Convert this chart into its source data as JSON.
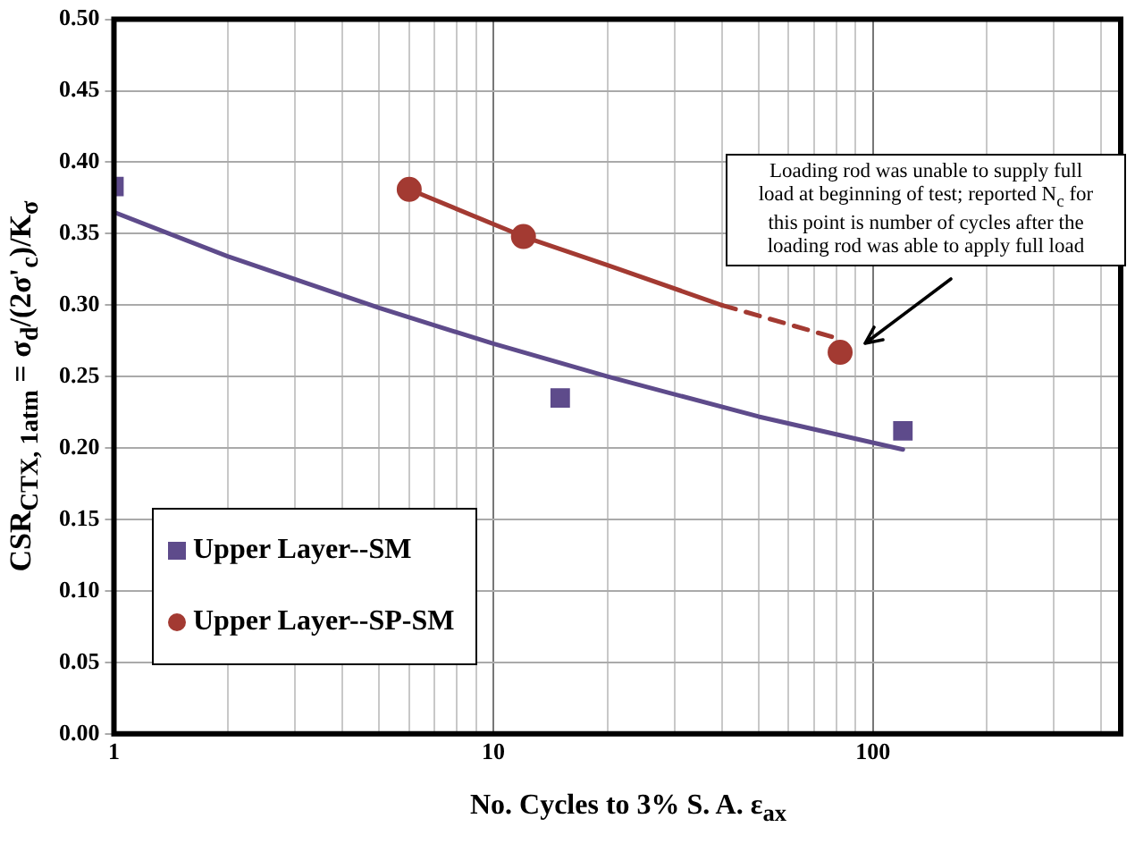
{
  "chart_data": {
    "type": "scatter",
    "xlabel": "No. Cycles to 3% S. A. ε$_{ax}$",
    "ylabel": "CSR$_{CTX, 1atm}$ = σ$_{d}$/(2σ'$_{c}$)/K$_{σ}$",
    "log": "x",
    "xlim": [
      1,
      450
    ],
    "xticks": [
      1,
      {
        "value": 2,
        "label": null
      },
      {
        "value": 3,
        "label": null
      },
      {
        "value": 4,
        "label": null
      },
      {
        "value": 5,
        "label": null
      },
      {
        "value": 6,
        "label": null
      },
      {
        "value": 7,
        "label": null
      },
      {
        "value": 8,
        "label": null
      },
      {
        "value": 9,
        "label": null
      },
      10,
      {
        "value": 20,
        "label": null
      },
      {
        "value": 30,
        "label": null
      },
      {
        "value": 40,
        "label": null
      },
      {
        "value": 50,
        "label": null
      },
      {
        "value": 60,
        "label": null
      },
      {
        "value": 70,
        "label": null
      },
      {
        "value": 80,
        "label": null
      },
      {
        "value": 90,
        "label": null
      },
      100,
      {
        "value": 200,
        "label": null
      },
      {
        "value": 300,
        "label": null
      },
      {
        "value": 400,
        "label": null
      }
    ],
    "ylim": [
      0,
      0.5
    ],
    "yticks": [
      {
        "value": 0,
        "label": "0.00"
      },
      {
        "value": 0.05,
        "label": "0.05"
      },
      {
        "value": 0.1,
        "label": "0.10"
      },
      {
        "value": 0.15,
        "label": "0.15"
      },
      {
        "value": 0.2,
        "label": "0.20"
      },
      {
        "value": 0.25,
        "label": "0.25"
      },
      {
        "value": 0.3,
        "label": "0.30"
      },
      {
        "value": 0.35,
        "label": "0.35"
      },
      {
        "value": 0.4,
        "label": "0.40"
      },
      {
        "value": 0.45,
        "label": "0.45"
      },
      {
        "value": 0.5,
        "label": "0.50"
      }
    ],
    "grid": true,
    "legend": "bottom left",
    "series": [
      {
        "name": "Upper Layer--SM",
        "type": "scatter",
        "marker": "square",
        "color": "#5e4b8b",
        "x": [
          1,
          15,
          120
        ],
        "values": [
          0.383,
          0.235,
          0.212
        ]
      },
      {
        "name": "Upper Layer--SP-SM",
        "type": "scatter",
        "marker": "circle",
        "color": "#a33a32",
        "x": [
          6,
          12,
          82
        ],
        "values": [
          0.381,
          0.348,
          0.267
        ]
      },
      {
        "type": "line",
        "marker": "none",
        "line_style": "solid",
        "color": "#5e4b8b",
        "x": [
          1,
          2,
          5,
          10,
          20,
          50,
          120
        ],
        "values": [
          0.365,
          0.334,
          0.298,
          0.273,
          0.25,
          0.222,
          0.199
        ]
      },
      {
        "type": "line",
        "marker": "none",
        "line_style": "solid",
        "color": "#a33a32",
        "x": [
          6,
          12,
          20,
          40
        ],
        "values": [
          0.381,
          0.348,
          0.328,
          0.3
        ]
      },
      {
        "type": "line",
        "marker": "none",
        "line_style": "dashed",
        "color": "#a33a32",
        "x": [
          40,
          80
        ],
        "values": [
          0.3,
          0.277
        ]
      }
    ],
    "annotations": [
      "Loading rod was unable to supply full load at beginning of test; reported N$_{c}$ for this point is number of cycles after the loading rod was able to apply full load"
    ]
  }
}
